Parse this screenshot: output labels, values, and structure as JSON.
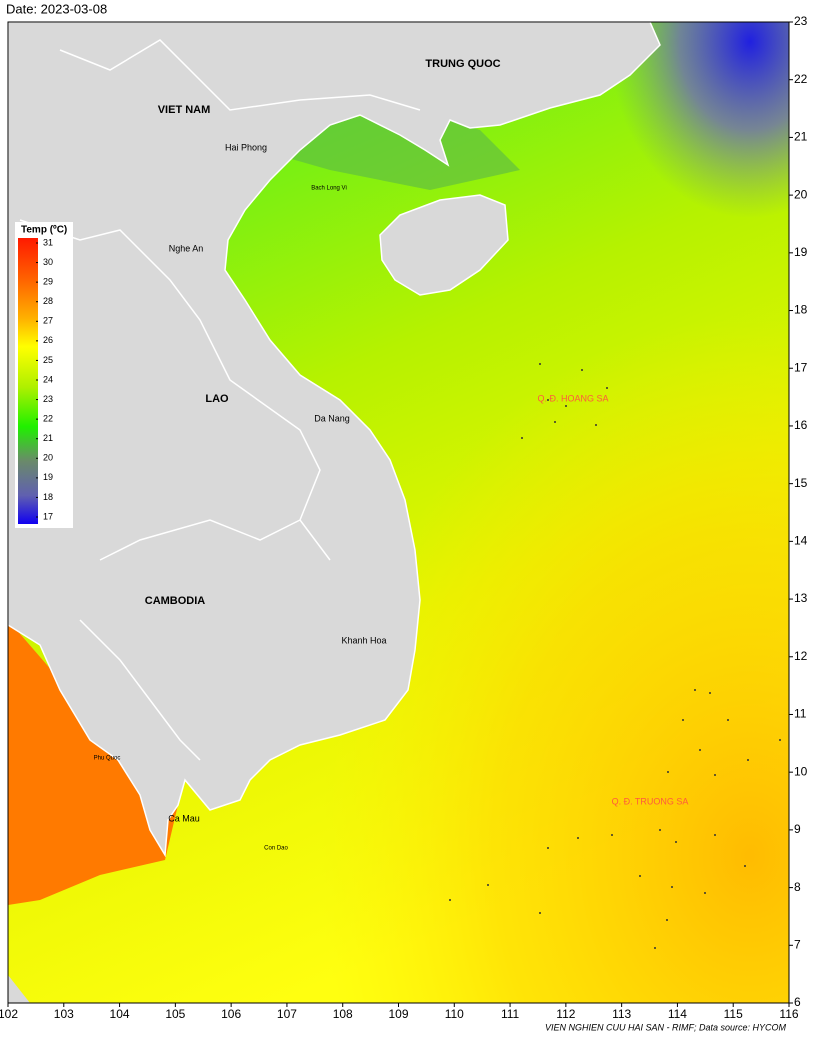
{
  "date_label": "Date: 2023-03-08",
  "map": {
    "xlim": [
      102,
      116
    ],
    "ylim": [
      6,
      23
    ],
    "xticks": [
      102,
      103,
      104,
      105,
      106,
      107,
      108,
      109,
      110,
      111,
      112,
      113,
      114,
      115,
      116
    ],
    "yticks": [
      6,
      7,
      8,
      9,
      10,
      11,
      12,
      13,
      14,
      15,
      16,
      17,
      18,
      19,
      20,
      21,
      22,
      23
    ]
  },
  "legend": {
    "title": "Temp (ºC)",
    "ticks": [
      31,
      30,
      29,
      28,
      27,
      26,
      25,
      24,
      23,
      22,
      21,
      20,
      19,
      18,
      17
    ]
  },
  "place_labels": [
    "TRUNG QUOC",
    "VIET NAM",
    "Hai Phong",
    "Bach Long Vi",
    "Nghe An",
    "LAO",
    "Da Nang",
    "CAMBODIA",
    "Khanh Hoa",
    "Phu Quoc",
    "Ca Mau",
    "Con Dao"
  ],
  "archipelago_labels": [
    "Q. Đ. HOANG SA",
    "Q. Đ. TRUONG SA"
  ],
  "credit": "VIEN NGHIEN CUU HAI SAN - RIMF; Data source: HYCOM"
}
